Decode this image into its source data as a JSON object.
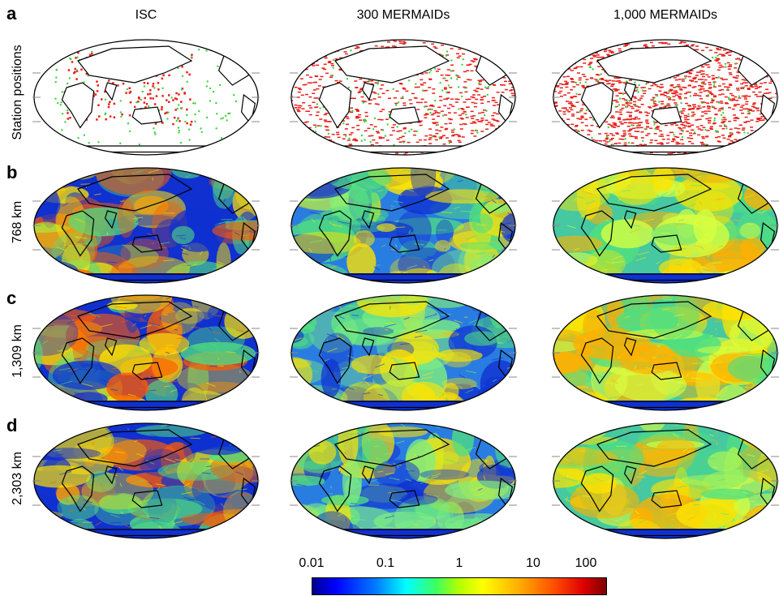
{
  "columns": [
    "ISC",
    "300 MERMAIDs",
    "1,000 MERMAIDs"
  ],
  "rows": [
    {
      "letter": "a",
      "label": "Station positions"
    },
    {
      "letter": "b",
      "label": "768 km"
    },
    {
      "letter": "c",
      "label": "1,309 km"
    },
    {
      "letter": "d",
      "label": "2,303 km"
    }
  ],
  "colorbar": {
    "ticks": [
      "0.01",
      "0.1",
      "1",
      "10",
      "100"
    ],
    "colors": [
      "#00008f",
      "#0000ff",
      "#0080ff",
      "#00ffff",
      "#3cff60",
      "#b4ff00",
      "#ffff00",
      "#ffb000",
      "#ff5000",
      "#e00000",
      "#7f0000"
    ]
  },
  "map_colors": {
    "station_red": "#e8201c",
    "station_green": "#3cd23c",
    "land_outline": "#000000",
    "low": "#1030d0",
    "mid": "#50e080",
    "high": "#ffe400",
    "hot": "#ff5a00"
  }
}
